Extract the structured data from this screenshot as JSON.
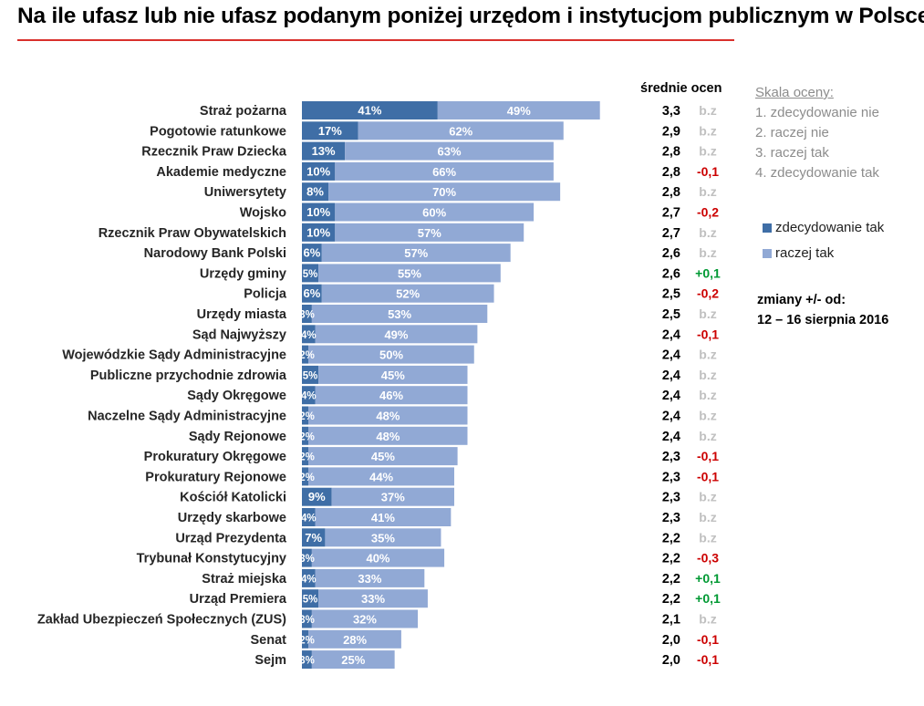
{
  "title": "Na ile ufasz lub nie ufasz podanym poniżej urzędom i instytucjom publicznym w Polsce?",
  "colors": {
    "strong": "#3f6ea6",
    "light": "#91a9d5",
    "positive": "#009933",
    "negative": "#cc0000",
    "neutral": "#c0c0c0",
    "rule": "#d9302c"
  },
  "avg_header": "średnie ocen",
  "scale": {
    "title": "Skala oceny:",
    "items": [
      "1. zdecydowanie nie",
      "2. raczej nie",
      "3. raczej tak",
      "4. zdecydowanie tak"
    ]
  },
  "legend": {
    "strong_label": "zdecydowanie tak",
    "light_label": "raczej tak"
  },
  "changes_note": {
    "line1": "zmiany +/- od:",
    "line2": "12 – 16 sierpnia 2016"
  },
  "chart_data": {
    "type": "bar",
    "orientation": "horizontal",
    "stacked": true,
    "title": "Na ile ufasz lub nie ufasz podanym poniżej urzędom i instytucjom publicznym w Polsce?",
    "categories": [
      "Straż pożarna",
      "Pogotowie ratunkowe",
      "Rzecznik Praw Dziecka",
      "Akademie medyczne",
      "Uniwersytety",
      "Wojsko",
      "Rzecznik Praw Obywatelskich",
      "Narodowy Bank Polski",
      "Urzędy gminy",
      "Policja",
      "Urzędy miasta",
      "Sąd Najwyższy",
      "Wojewódzkie Sądy Administracyjne",
      "Publiczne przychodnie zdrowia",
      "Sądy Okręgowe",
      "Naczelne Sądy Administracyjne",
      "Sądy Rejonowe",
      "Prokuratury Okręgowe",
      "Prokuratury Rejonowe",
      "Kościół Katolicki",
      "Urzędy skarbowe",
      "Urząd Prezydenta",
      "Trybunał Konstytucyjny",
      "Straż miejska",
      "Urząd Premiera",
      "Zakład Ubezpieczeń Społecznych (ZUS)",
      "Senat",
      "Sejm"
    ],
    "series": [
      {
        "name": "zdecydowanie tak",
        "values": [
          41,
          17,
          13,
          10,
          8,
          10,
          10,
          6,
          5,
          6,
          3,
          4,
          2,
          5,
          4,
          2,
          2,
          2,
          2,
          9,
          4,
          7,
          3,
          4,
          5,
          3,
          2,
          3
        ]
      },
      {
        "name": "raczej tak",
        "values": [
          49,
          62,
          63,
          66,
          70,
          60,
          57,
          57,
          55,
          52,
          53,
          49,
          50,
          45,
          46,
          48,
          48,
          45,
          44,
          37,
          41,
          35,
          40,
          33,
          33,
          32,
          28,
          25
        ]
      }
    ],
    "averages": [
      "3,3",
      "2,9",
      "2,8",
      "2,8",
      "2,8",
      "2,7",
      "2,7",
      "2,6",
      "2,6",
      "2,5",
      "2,5",
      "2,4",
      "2,4",
      "2,4",
      "2,4",
      "2,4",
      "2,4",
      "2,3",
      "2,3",
      "2,3",
      "2,3",
      "2,2",
      "2,2",
      "2,2",
      "2,2",
      "2,1",
      "2,0",
      "2,0"
    ],
    "changes": [
      "b.z",
      "b.z",
      "b.z",
      "-0,1",
      "b.z",
      "-0,2",
      "b.z",
      "b.z",
      "+0,1",
      "-0,2",
      "b.z",
      "-0,1",
      "b.z",
      "b.z",
      "b.z",
      "b.z",
      "b.z",
      "-0,1",
      "-0,1",
      "b.z",
      "b.z",
      "b.z",
      "-0,3",
      "+0,1",
      "+0,1",
      "b.z",
      "-0,1",
      "-0,1"
    ],
    "xlim": [
      0,
      100
    ],
    "legend": [
      "zdecydowanie tak",
      "raczej tak"
    ]
  }
}
